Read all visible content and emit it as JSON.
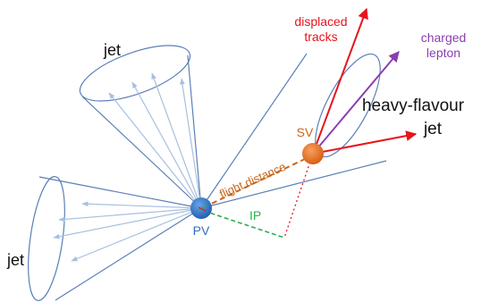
{
  "labels": {
    "jet_upper": "jet",
    "jet_left": "jet",
    "heavy_flavour_line1": "heavy-flavour",
    "heavy_flavour_line2": "jet",
    "displaced_line1": "displaced",
    "displaced_line2": "tracks",
    "charged_line1": "charged",
    "charged_line2": "lepton",
    "sv": "SV",
    "pv": "PV",
    "flight_distance": "flight distance",
    "ip": "IP"
  },
  "colors": {
    "cone_outline": "#5b7fb8",
    "cone_arrow": "#a7c0e0",
    "displaced": "#e8141c",
    "lepton": "#8a3fb0",
    "sv_fill": "#e26c17",
    "pv_fill": "#2e6fc0",
    "flight": "#c8651a",
    "ip": "#2bb04a",
    "text_dark": "#111111"
  }
}
